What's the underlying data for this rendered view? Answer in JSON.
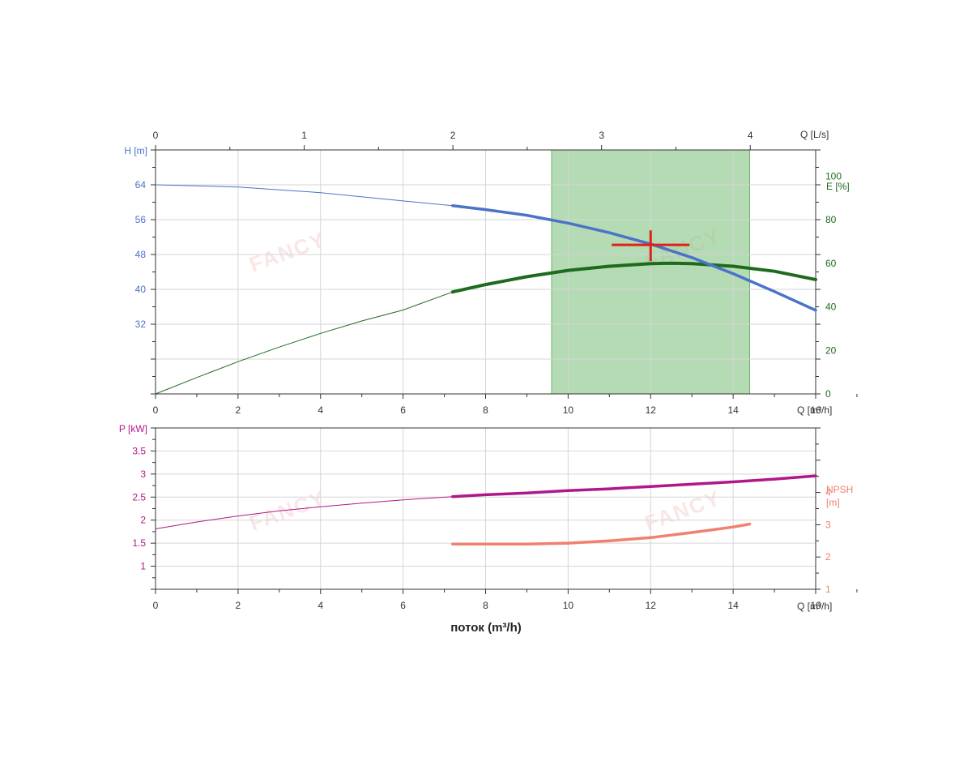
{
  "colors": {
    "head": "#4a73c9",
    "efficiency": "#1e6b1e",
    "power": "#b0188a",
    "npsh": "#f08070",
    "operating_point": "#e0201b",
    "range": "#8cc88c",
    "grid": "#d6d6d6",
    "axis": "#333333"
  },
  "watermark": "FANCY",
  "chart_data": [
    {
      "type": "line",
      "panel": "performance",
      "x_top": {
        "label": "Q [L/s]",
        "range": [
          0,
          4.44
        ],
        "ticks": [
          0,
          1,
          2,
          3,
          4
        ]
      },
      "x": {
        "label": "Q [m³/h]",
        "range": [
          0,
          16
        ],
        "ticks": [
          0,
          2,
          4,
          6,
          8,
          10,
          12,
          14,
          16
        ]
      },
      "y_left": {
        "label": "H [m]",
        "range": [
          16,
          72
        ],
        "ticks": [
          32,
          40,
          48,
          56,
          64
        ]
      },
      "y_right": {
        "label": "E [%]",
        "range": [
          0,
          112
        ],
        "ticks": [
          0,
          20,
          40,
          60,
          80,
          100
        ]
      },
      "grid": true,
      "recommended_range": [
        9.6,
        14.4
      ],
      "operating_point": {
        "q": 12,
        "h": 50.2
      },
      "series": [
        {
          "key": "head",
          "axis": "left",
          "thick_from": 7.2,
          "points": [
            [
              0,
              64
            ],
            [
              2,
              63.5
            ],
            [
              4,
              62.2
            ],
            [
              6,
              60.3
            ],
            [
              7.2,
              59.2
            ],
            [
              8,
              58.3
            ],
            [
              9,
              57.0
            ],
            [
              10,
              55.2
            ],
            [
              11,
              53.0
            ],
            [
              12,
              50.4
            ],
            [
              13,
              47.3
            ],
            [
              14,
              43.6
            ],
            [
              15,
              39.5
            ],
            [
              16,
              35.2
            ]
          ]
        },
        {
          "key": "efficiency",
          "axis": "right",
          "thick_from": 7.2,
          "points": [
            [
              0,
              0
            ],
            [
              1,
              7.5
            ],
            [
              2,
              14.8
            ],
            [
              3,
              21.5
            ],
            [
              4,
              27.8
            ],
            [
              5,
              33.5
            ],
            [
              6,
              38.5
            ],
            [
              7.2,
              46.8
            ],
            [
              8,
              50.2
            ],
            [
              9,
              53.8
            ],
            [
              10,
              56.7
            ],
            [
              11,
              58.6
            ],
            [
              12,
              59.8
            ],
            [
              12.5,
              60
            ],
            [
              13,
              59.8
            ],
            [
              14,
              58.6
            ],
            [
              15,
              56.3
            ],
            [
              16,
              52.5
            ]
          ]
        }
      ]
    },
    {
      "type": "line",
      "panel": "power",
      "x": {
        "label": "Q [m³/h]",
        "range": [
          0,
          16
        ],
        "ticks": [
          0,
          2,
          4,
          6,
          8,
          10,
          12,
          14,
          16
        ]
      },
      "y_left": {
        "label": "P [kW]",
        "range": [
          0.5,
          4
        ],
        "ticks": [
          1,
          1.5,
          2,
          2.5,
          3,
          3.5
        ]
      },
      "y_right": {
        "label_line1": "NPSH",
        "label_line2": "[m]",
        "range": [
          1,
          6
        ],
        "ticks": [
          1,
          2,
          3,
          4
        ]
      },
      "xlabel": "поток (m³/h)",
      "grid": true,
      "series": [
        {
          "key": "power",
          "axis": "left",
          "thick_from": 7.2,
          "points": [
            [
              0,
              1.81
            ],
            [
              1,
              1.96
            ],
            [
              2,
              2.09
            ],
            [
              3,
              2.2
            ],
            [
              4,
              2.29
            ],
            [
              5,
              2.37
            ],
            [
              6,
              2.44
            ],
            [
              7.2,
              2.51
            ],
            [
              8,
              2.55
            ],
            [
              9,
              2.59
            ],
            [
              10,
              2.64
            ],
            [
              11,
              2.68
            ],
            [
              12,
              2.73
            ],
            [
              13,
              2.78
            ],
            [
              14,
              2.83
            ],
            [
              15,
              2.89
            ],
            [
              16,
              2.96
            ]
          ]
        },
        {
          "key": "npsh",
          "axis": "right",
          "thick_from": 7.2,
          "points": [
            [
              7.2,
              2.4
            ],
            [
              8,
              2.4
            ],
            [
              9,
              2.4
            ],
            [
              10,
              2.43
            ],
            [
              11,
              2.5
            ],
            [
              12,
              2.6
            ],
            [
              13,
              2.76
            ],
            [
              14,
              2.93
            ],
            [
              14.4,
              3.02
            ]
          ]
        }
      ]
    }
  ]
}
